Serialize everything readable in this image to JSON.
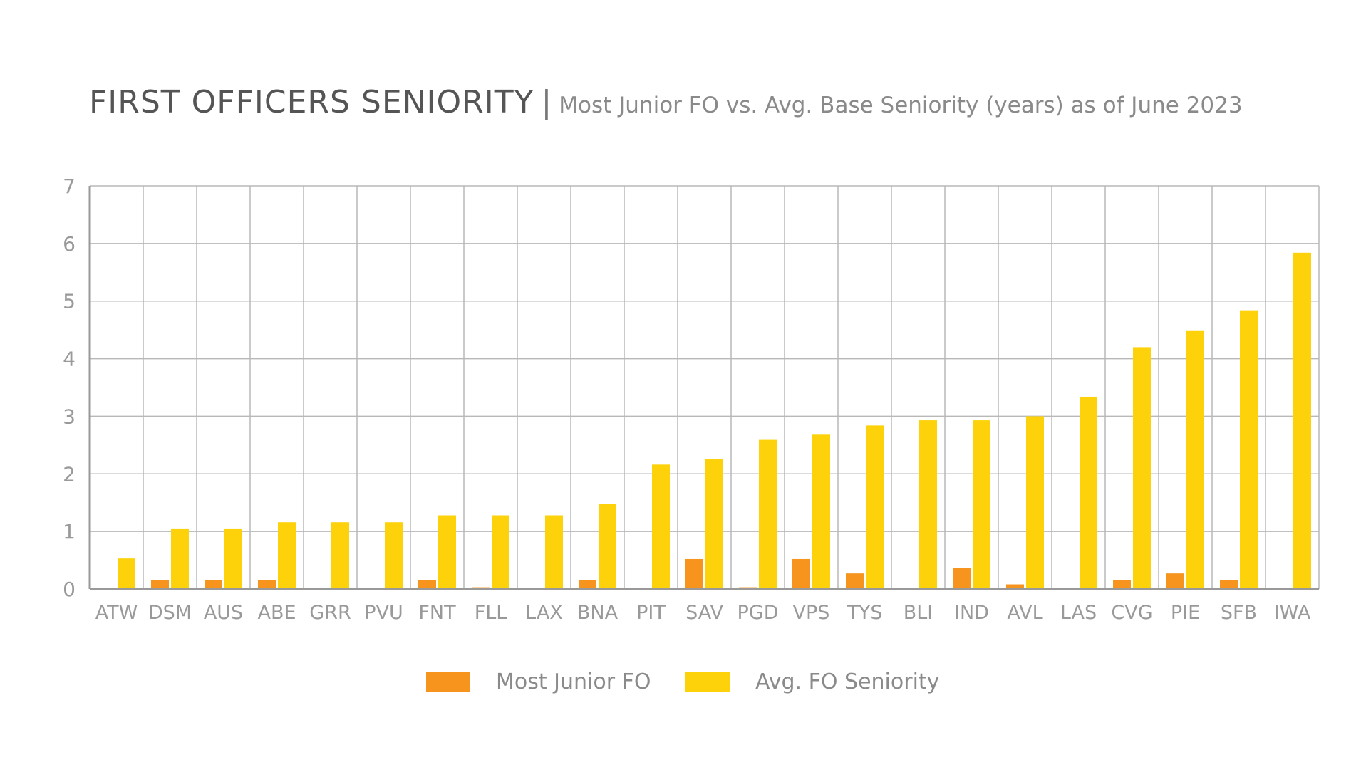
{
  "header": {
    "title": "FIRST OFFICERS SENIORITY",
    "separator": "|",
    "subtitle": "Most Junior FO vs. Avg. Base Seniority (years) as of June 2023"
  },
  "colors": {
    "most_junior": "#F7941D",
    "avg_seniority": "#FDD20A",
    "grid": "#b8b8b8",
    "axis": "#999999",
    "tick_text": "#999999"
  },
  "legend": {
    "items": [
      {
        "label": "Most Junior FO",
        "color": "#F7941D"
      },
      {
        "label": "Avg. FO Seniority",
        "color": "#FDD20A"
      }
    ]
  },
  "chart_data": {
    "type": "bar",
    "title": "FIRST OFFICERS SENIORITY",
    "subtitle": "Most Junior FO vs. Avg. Base Seniority (years) as of June 2023",
    "xlabel": "",
    "ylabel": "",
    "ylim": [
      0,
      7
    ],
    "yticks": [
      0,
      1,
      2,
      3,
      4,
      5,
      6,
      7
    ],
    "grid": true,
    "legend_position": "bottom",
    "categories": [
      "ATW",
      "DSM",
      "AUS",
      "ABE",
      "GRR",
      "PVU",
      "FNT",
      "FLL",
      "LAX",
      "BNA",
      "PIT",
      "SAV",
      "PGD",
      "VPS",
      "TYS",
      "BLI",
      "IND",
      "AVL",
      "LAS",
      "CVG",
      "PIE",
      "SFB",
      "IWA"
    ],
    "series": [
      {
        "name": "Most Junior FO",
        "color": "#F7941D",
        "values": [
          0,
          0.15,
          0.15,
          0.15,
          0,
          0,
          0.15,
          0.03,
          0,
          0.15,
          0,
          0.52,
          0.03,
          0.52,
          0.27,
          0,
          0.37,
          0.08,
          0,
          0.15,
          0.27,
          0.15,
          0
        ]
      },
      {
        "name": "Avg. FO Seniority",
        "color": "#FDD20A",
        "values": [
          0.53,
          1.04,
          1.04,
          1.16,
          1.16,
          1.16,
          1.28,
          1.28,
          1.28,
          1.48,
          2.16,
          2.26,
          2.59,
          2.68,
          2.84,
          2.93,
          2.93,
          3.0,
          3.34,
          4.2,
          4.48,
          4.84,
          5.84
        ]
      }
    ]
  }
}
